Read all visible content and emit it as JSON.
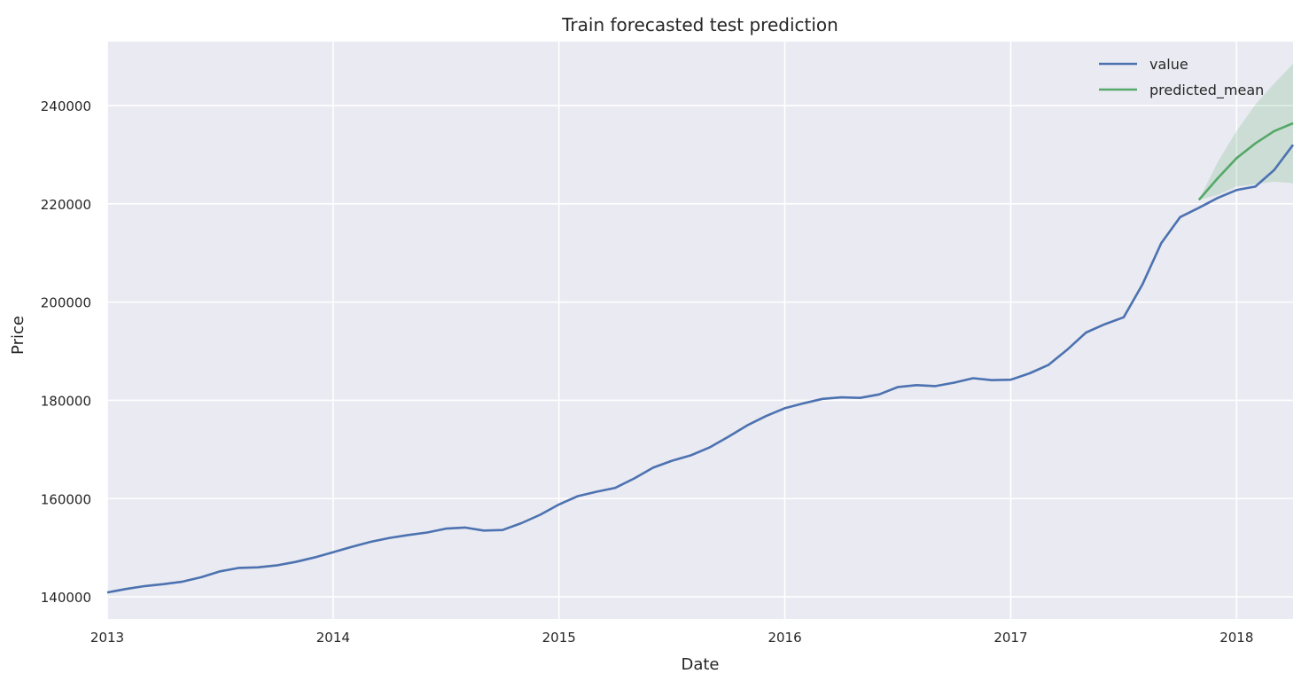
{
  "chart_data": {
    "type": "line",
    "title": "Train forecasted test prediction",
    "xlabel": "Date",
    "ylabel": "Price",
    "xlim": [
      "2013-01",
      "2018-04"
    ],
    "ylim": [
      135500,
      253000
    ],
    "x_ticks": [
      "2013",
      "2014",
      "2015",
      "2016",
      "2017",
      "2018"
    ],
    "y_ticks": [
      140000,
      160000,
      180000,
      200000,
      220000,
      240000
    ],
    "grid": true,
    "legend": "top-right",
    "colors": {
      "background": "#eaeaf2",
      "grid": "#ffffff",
      "value": "#4c72b0",
      "predicted_mean": "#55a868",
      "confidence": "#55a868"
    },
    "series": [
      {
        "name": "value",
        "x": [
          "2013-01",
          "2013-02",
          "2013-03",
          "2013-04",
          "2013-05",
          "2013-06",
          "2013-07",
          "2013-08",
          "2013-09",
          "2013-10",
          "2013-11",
          "2013-12",
          "2014-01",
          "2014-02",
          "2014-03",
          "2014-04",
          "2014-05",
          "2014-06",
          "2014-07",
          "2014-08",
          "2014-09",
          "2014-10",
          "2014-11",
          "2014-12",
          "2015-01",
          "2015-02",
          "2015-03",
          "2015-04",
          "2015-05",
          "2015-06",
          "2015-07",
          "2015-08",
          "2015-09",
          "2015-10",
          "2015-11",
          "2015-12",
          "2016-01",
          "2016-02",
          "2016-03",
          "2016-04",
          "2016-05",
          "2016-06",
          "2016-07",
          "2016-08",
          "2016-09",
          "2016-10",
          "2016-11",
          "2016-12",
          "2017-01",
          "2017-02",
          "2017-03",
          "2017-04",
          "2017-05",
          "2017-06",
          "2017-07",
          "2017-08",
          "2017-09",
          "2017-10",
          "2017-11",
          "2017-12",
          "2018-01",
          "2018-02",
          "2018-03",
          "2018-04"
        ],
        "values": [
          140900,
          141600,
          142200,
          142600,
          143100,
          144000,
          145200,
          145900,
          146000,
          146400,
          147100,
          148000,
          149100,
          150200,
          151200,
          152000,
          152600,
          153100,
          153900,
          154100,
          153500,
          153600,
          155000,
          156700,
          158800,
          160500,
          161400,
          162200,
          164100,
          166300,
          167700,
          168800,
          170400,
          172600,
          174900,
          176800,
          178400,
          179400,
          180300,
          180600,
          180500,
          181200,
          182700,
          183100,
          182900,
          183600,
          184500,
          184100,
          184200,
          185500,
          187200,
          190300,
          193800,
          195500,
          196900,
          203600,
          212000,
          217300,
          219200,
          221200,
          222800,
          223500,
          226900,
          232000
        ]
      },
      {
        "name": "predicted_mean",
        "x": [
          "2017-11",
          "2017-12",
          "2018-01",
          "2018-02",
          "2018-03",
          "2018-04"
        ],
        "values": [
          220800,
          225200,
          229300,
          232300,
          234800,
          236400
        ],
        "ci_lower": [
          220800,
          221800,
          223500,
          224000,
          224500,
          224200
        ],
        "ci_upper": [
          220800,
          228500,
          234800,
          240200,
          244500,
          248500
        ]
      }
    ]
  }
}
